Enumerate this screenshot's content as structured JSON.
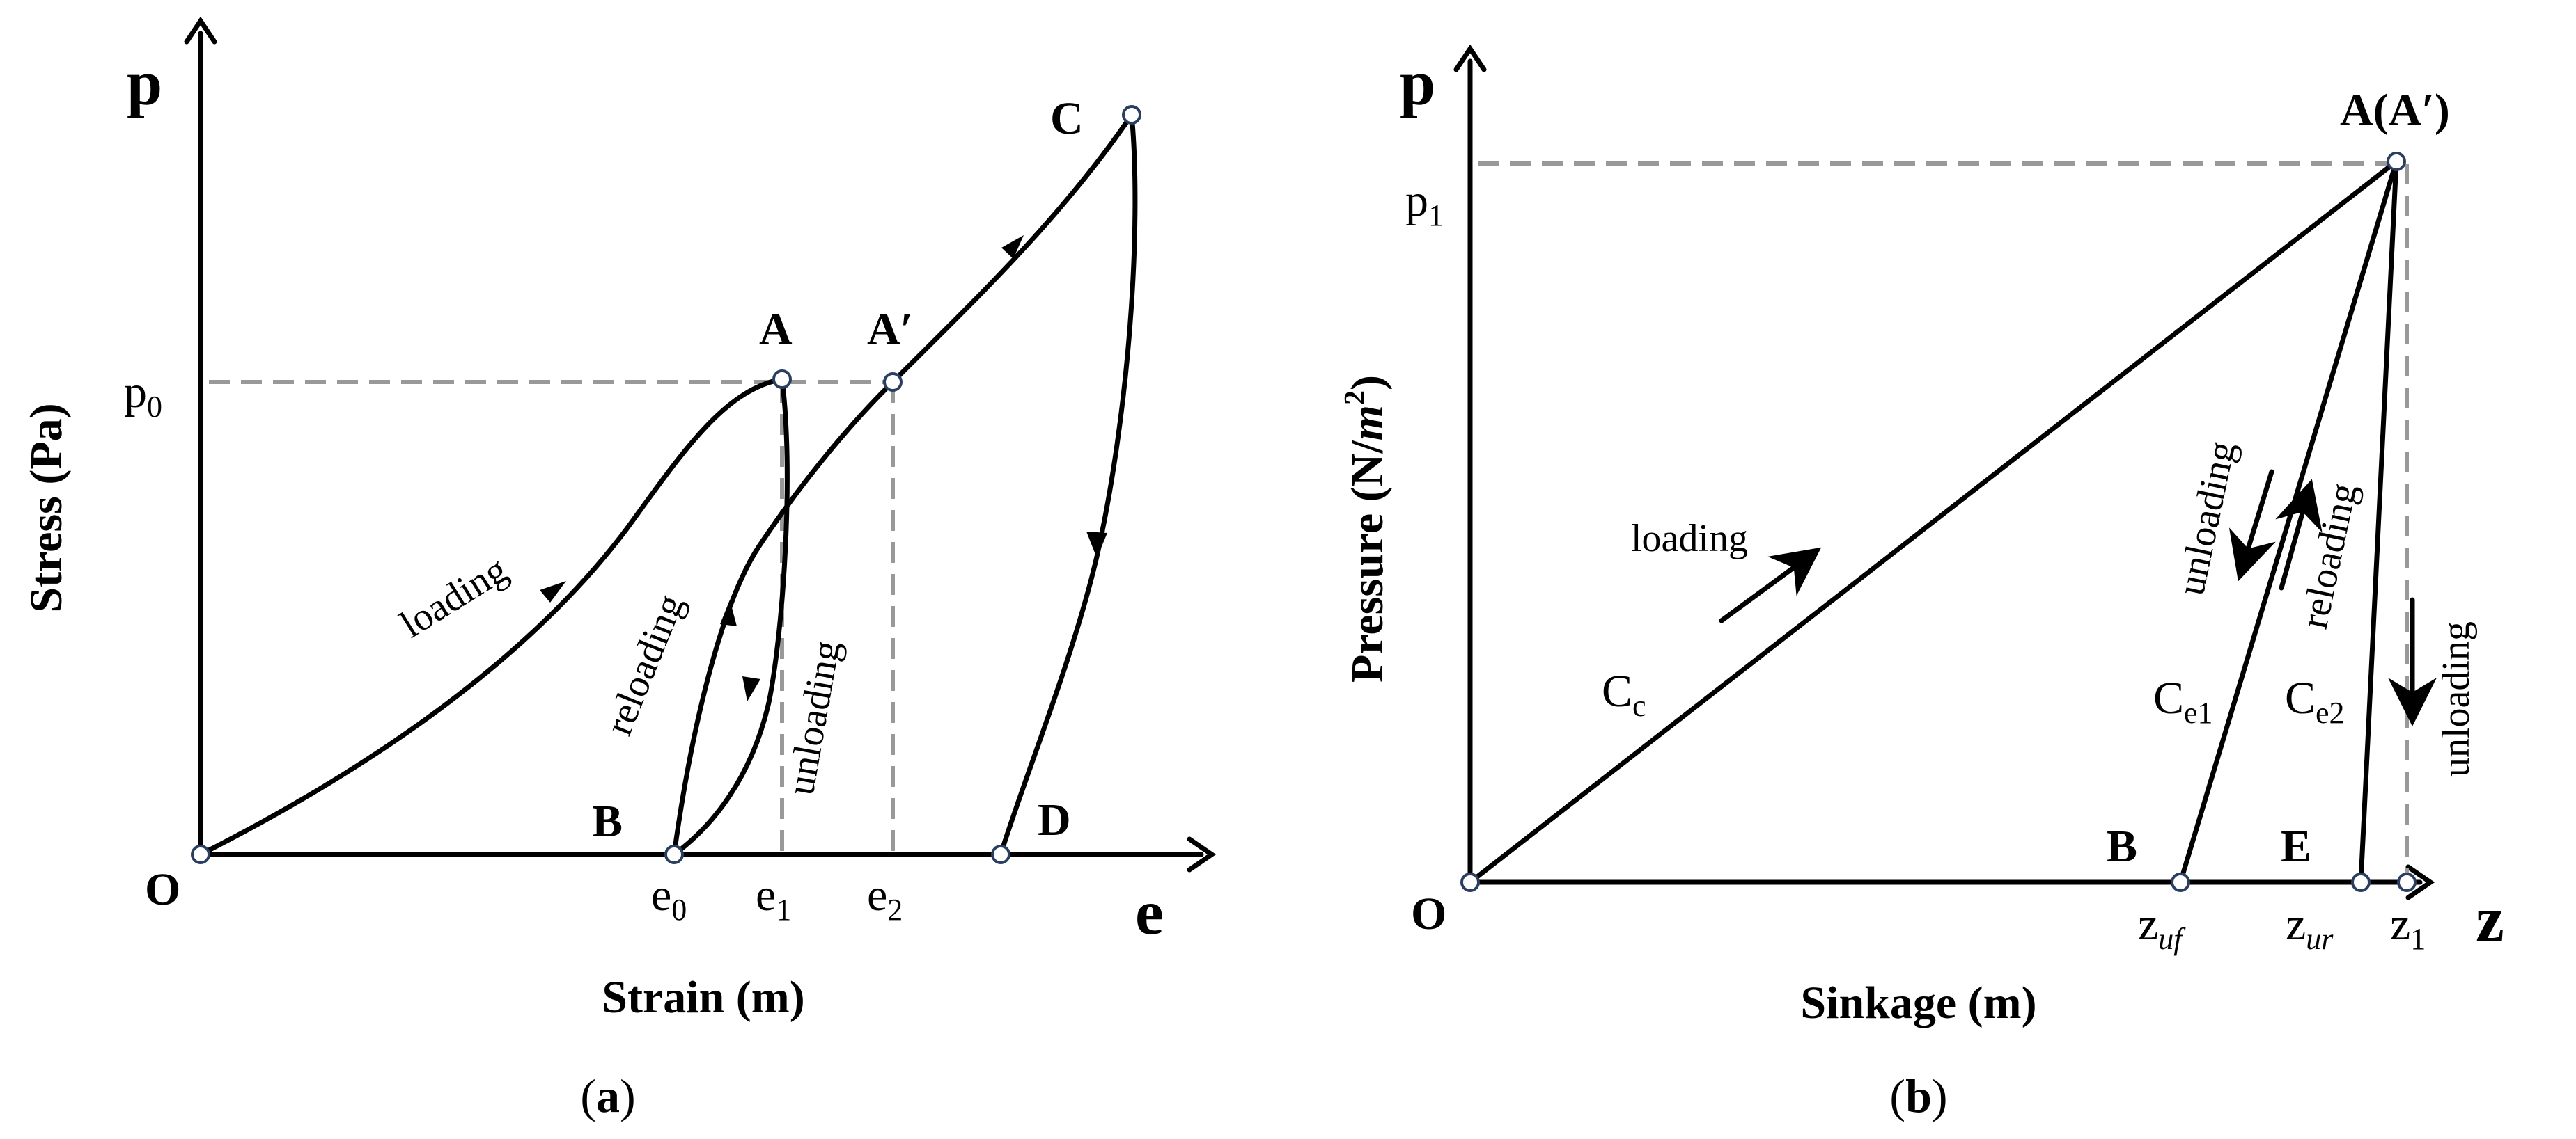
{
  "panel_a": {
    "tag": "(a)",
    "tag_letter": "a",
    "y_axis_symbol": "p",
    "x_axis_symbol": "e",
    "y_axis_title": "Stress (Pa)",
    "x_axis_title": "Strain (m)",
    "origin_label": "O",
    "points": {
      "A": "A",
      "A_prime": "A′",
      "B": "B",
      "C": "C",
      "D": "D"
    },
    "y_ticks": [
      {
        "base": "p",
        "sub": "0"
      }
    ],
    "x_ticks": [
      {
        "base": "e",
        "sub": "0"
      },
      {
        "base": "e",
        "sub": "1"
      },
      {
        "base": "e",
        "sub": "2"
      }
    ],
    "annotations": {
      "loading": "loading",
      "reloading": "reloading",
      "unloading": "unloading"
    }
  },
  "panel_b": {
    "tag": "(b)",
    "tag_letter": "b",
    "y_axis_symbol": "p",
    "x_axis_symbol": "z",
    "y_axis_title": "Pressure (N/",
    "y_axis_title_m": "m",
    "y_axis_title_sup": "2",
    "y_axis_title_end": ")",
    "x_axis_title": "Sinkage (m)",
    "origin_label": "O",
    "points": {
      "A": "A(A′)",
      "B": "B",
      "E": "E"
    },
    "y_ticks": [
      {
        "base": "p",
        "sub": "1"
      }
    ],
    "x_ticks": [
      {
        "base": "z",
        "sub": "uf"
      },
      {
        "base": "z",
        "sub": "ur"
      },
      {
        "base": "z",
        "sub": "1"
      }
    ],
    "annotations": {
      "loading": "loading",
      "unloading_1": "unloading",
      "reloading": "reloading",
      "unloading_2": "unloading"
    },
    "line_labels": [
      {
        "base": "C",
        "sub": "c"
      },
      {
        "base": "C",
        "sub": "e1"
      },
      {
        "base": "C",
        "sub": "e2"
      }
    ]
  },
  "colors": {
    "line": "#000000",
    "guide": "#999999",
    "point_stroke": "#2a3f5f",
    "point_fill": "#ffffff"
  }
}
